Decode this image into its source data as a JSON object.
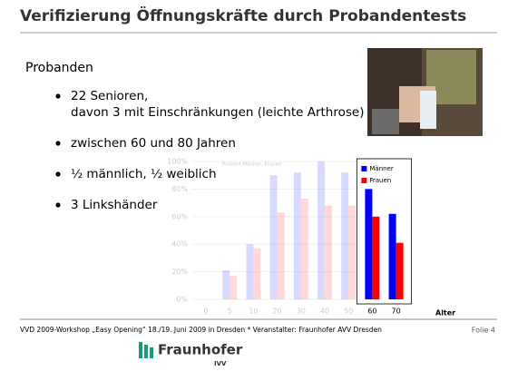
{
  "header": {
    "title": "Verifizierung Öffnungskräfte durch Probandentests"
  },
  "content": {
    "heading": "Probanden",
    "bullets": [
      [
        "22 Senioren,",
        "davon 3 mit Einschränkungen (leichte Arthrose)"
      ],
      [
        "zwischen 60 und 80 Jahren"
      ],
      [
        "½ männlich, ½ weiblich"
      ],
      [
        "3 Linkshänder"
      ]
    ]
  },
  "chart_data": {
    "type": "bar",
    "title": "Prozent Männer, Frauen",
    "x_label": "Alter",
    "categories": [
      "0",
      "5",
      "10",
      "20",
      "30",
      "40",
      "50",
      "60",
      "70"
    ],
    "series": [
      {
        "name": "Männer",
        "color": "#0000ff",
        "values": [
          0,
          21,
          40,
          90,
          92,
          100,
          92,
          80,
          62
        ]
      },
      {
        "name": "Frauen",
        "color": "#ff0000",
        "values": [
          0,
          17,
          37,
          63,
          73,
          68,
          68,
          60,
          41
        ]
      }
    ],
    "ylim": [
      0,
      100
    ],
    "yticks": [
      {
        "value": 0,
        "label": "0%"
      },
      {
        "value": 20,
        "label": "20%"
      },
      {
        "value": 40,
        "label": "40%"
      },
      {
        "value": 60,
        "label": "60%"
      },
      {
        "value": 80,
        "label": "80%"
      },
      {
        "value": 100,
        "label": "100%"
      }
    ],
    "grid": true
  },
  "footer": {
    "text": "VVD 2009-Workshop „Easy Opening“ 18./19. Juni 2009 in Dresden  *  Veranstalter:  Fraunhofer AVV Dresden",
    "slide": "Folie 4"
  },
  "logo": {
    "name": "Fraunhofer",
    "unit": "IVV"
  }
}
